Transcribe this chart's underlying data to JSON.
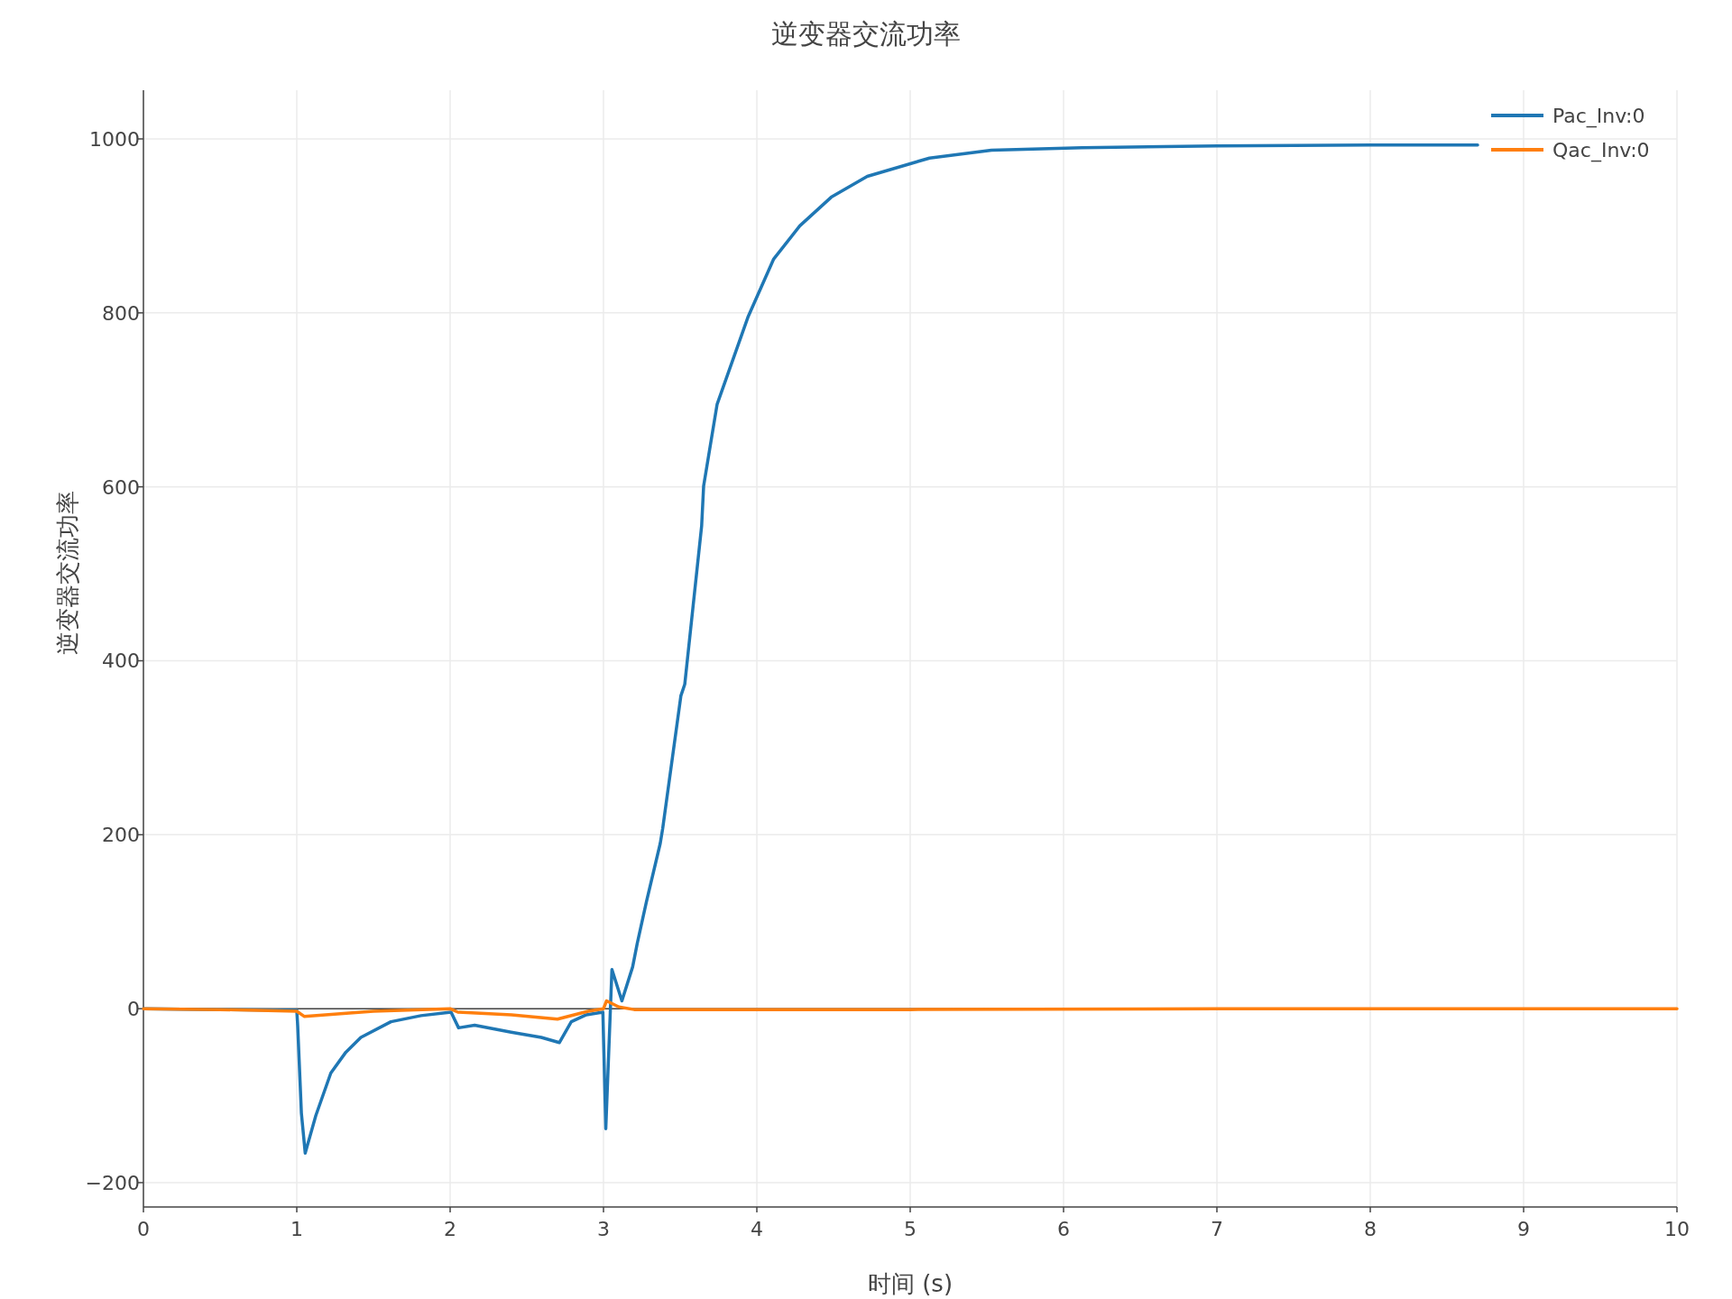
{
  "chart_data": {
    "type": "line",
    "title": "逆变器交流功率",
    "xlabel": "时间 (s)",
    "ylabel": "逆变器交流功率",
    "xlim": [
      0,
      10
    ],
    "xticks": [
      0,
      1,
      2,
      3,
      4,
      5,
      6,
      7,
      8,
      9,
      10
    ],
    "ylim": [
      -228,
      1056
    ],
    "yticks": [
      {
        "value": -200,
        "label": "−200"
      },
      0,
      200,
      400,
      600,
      800,
      1000
    ],
    "grid": true,
    "legend": "top right",
    "marker": "none",
    "line_style": "solid",
    "series": [
      {
        "name": "Pac_Inv:0",
        "color": "#1f77b4",
        "x": [
          0,
          0.5,
          1.0,
          1.006,
          1.03,
          1.055,
          1.124,
          1.222,
          1.32,
          1.418,
          1.614,
          1.81,
          2.006,
          2.055,
          2.16,
          2.398,
          2.594,
          2.712,
          2.79,
          2.888,
          2.996,
          3.015,
          3.055,
          3.12,
          3.19,
          3.22,
          3.28,
          3.37,
          3.386,
          3.505,
          3.53,
          3.64,
          3.653,
          3.741,
          3.944,
          4.11,
          4.28,
          4.485,
          4.72,
          5.126,
          5.53,
          6.12,
          7.0,
          8.0,
          8.7
        ],
        "values": [
          0,
          -1,
          -2,
          -20,
          -120,
          -166,
          -123,
          -74,
          -50,
          -33,
          -15,
          -8,
          -4,
          -22,
          -19,
          -27,
          -33,
          -39,
          -15,
          -7,
          -4,
          -138,
          45,
          9,
          48,
          75,
          123,
          190,
          207,
          360,
          373,
          555,
          601,
          695,
          796,
          862,
          900,
          933,
          957,
          978,
          987,
          990,
          992,
          993,
          993
        ]
      },
      {
        "name": "Qac_Inv:0",
        "color": "#ff7f0e",
        "x": [
          0,
          0.5,
          1.0,
          1.05,
          1.5,
          2.0,
          2.05,
          2.4,
          2.7,
          2.9,
          3.0,
          3.02,
          3.1,
          3.2,
          5.0,
          7.0,
          10.0
        ],
        "values": [
          0,
          -1,
          -3,
          -9,
          -3,
          0,
          -4,
          -7,
          -12,
          -3,
          0,
          9,
          2,
          -1,
          -1,
          0,
          0
        ]
      }
    ]
  }
}
